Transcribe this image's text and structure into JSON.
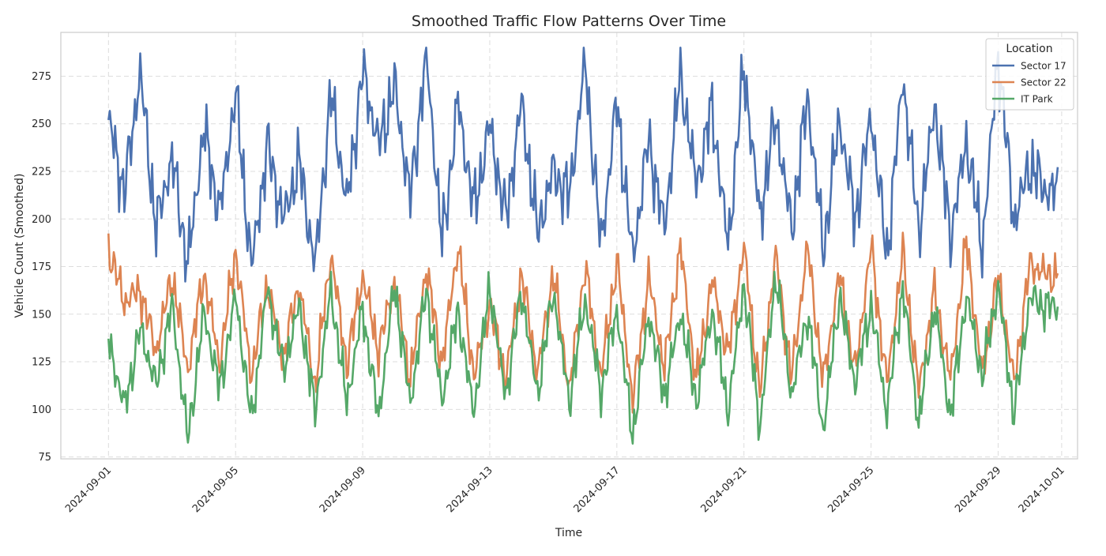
{
  "chart_data": {
    "type": "line",
    "title": "Smoothed Traffic Flow Patterns Over Time",
    "xlabel": "Time",
    "ylabel": "Vehicle Count (Smoothed)",
    "x_ticks": [
      "2024-09-01",
      "2024-09-05",
      "2024-09-09",
      "2024-09-13",
      "2024-09-17",
      "2024-09-21",
      "2024-09-25",
      "2024-09-29",
      "2024-10-01"
    ],
    "y_ticks": [
      75,
      100,
      125,
      150,
      175,
      200,
      225,
      250,
      275
    ],
    "xlim": [
      "2024-08-30T12:00",
      "2024-10-01T12:00"
    ],
    "ylim": [
      74,
      298
    ],
    "grid": true,
    "legend_title": "Location",
    "legend_position": "top-right",
    "x_times": [
      "2024-09-01T00:00",
      "2024-09-01T12:00",
      "2024-09-02T00:00",
      "2024-09-02T12:00",
      "2024-09-03T00:00",
      "2024-09-03T12:00",
      "2024-09-04T00:00",
      "2024-09-04T12:00",
      "2024-09-05T00:00",
      "2024-09-05T12:00",
      "2024-09-06T00:00",
      "2024-09-06T12:00",
      "2024-09-07T00:00",
      "2024-09-07T12:00",
      "2024-09-08T00:00",
      "2024-09-08T12:00",
      "2024-09-09T00:00",
      "2024-09-09T12:00",
      "2024-09-10T00:00",
      "2024-09-10T12:00",
      "2024-09-11T00:00",
      "2024-09-11T12:00",
      "2024-09-12T00:00",
      "2024-09-12T12:00",
      "2024-09-13T00:00",
      "2024-09-13T12:00",
      "2024-09-14T00:00",
      "2024-09-14T12:00",
      "2024-09-15T00:00",
      "2024-09-15T12:00",
      "2024-09-16T00:00",
      "2024-09-16T12:00",
      "2024-09-17T00:00",
      "2024-09-17T12:00",
      "2024-09-18T00:00",
      "2024-09-18T12:00",
      "2024-09-19T00:00",
      "2024-09-19T12:00",
      "2024-09-20T00:00",
      "2024-09-20T12:00",
      "2024-09-21T00:00",
      "2024-09-21T12:00",
      "2024-09-22T00:00",
      "2024-09-22T12:00",
      "2024-09-23T00:00",
      "2024-09-23T12:00",
      "2024-09-24T00:00",
      "2024-09-24T12:00",
      "2024-09-25T00:00",
      "2024-09-25T12:00",
      "2024-09-26T00:00",
      "2024-09-26T12:00",
      "2024-09-27T00:00",
      "2024-09-27T12:00",
      "2024-09-28T00:00",
      "2024-09-28T12:00",
      "2024-09-29T00:00",
      "2024-09-29T12:00",
      "2024-09-30T00:00",
      "2024-09-30T12:00"
    ],
    "series": [
      {
        "name": "Sector 17",
        "color": "#4c72b0",
        "values": [
          252,
          214,
          277,
          195,
          232,
          176,
          247,
          203,
          266,
          175,
          238,
          200,
          230,
          175,
          265,
          207,
          278,
          238,
          270,
          210,
          288,
          186,
          262,
          204,
          250,
          199,
          262,
          192,
          226,
          211,
          283,
          185,
          262,
          178,
          242,
          194,
          277,
          218,
          258,
          186,
          280,
          201,
          253,
          195,
          264,
          184,
          252,
          200,
          254,
          180,
          275,
          193,
          260,
          191,
          242,
          184,
          287,
          198,
          229,
          214
        ]
      },
      {
        "name": "Sector 22",
        "color": "#dd8452",
        "values": [
          185,
          156,
          163,
          130,
          171,
          120,
          172,
          124,
          183,
          118,
          166,
          127,
          166,
          112,
          182,
          124,
          170,
          131,
          167,
          117,
          174,
          124,
          186,
          118,
          155,
          116,
          171,
          119,
          172,
          110,
          175,
          117,
          178,
          104,
          170,
          121,
          186,
          114,
          169,
          128,
          186,
          108,
          182,
          116,
          186,
          114,
          171,
          119,
          186,
          113,
          182,
          110,
          162,
          116,
          188,
          118,
          170,
          114,
          176,
          171
        ]
      },
      {
        "name": "IT Park",
        "color": "#55a868",
        "values": [
          136,
          101,
          142,
          112,
          155,
          84,
          151,
          110,
          160,
          93,
          164,
          120,
          155,
          98,
          163,
          103,
          153,
          95,
          166,
          102,
          163,
          104,
          152,
          98,
          165,
          107,
          162,
          108,
          162,
          104,
          157,
          109,
          152,
          86,
          150,
          107,
          151,
          104,
          152,
          99,
          166,
          90,
          172,
          107,
          151,
          88,
          160,
          113,
          155,
          98,
          165,
          92,
          155,
          96,
          160,
          117,
          165,
          97,
          159,
          154
        ]
      }
    ]
  }
}
